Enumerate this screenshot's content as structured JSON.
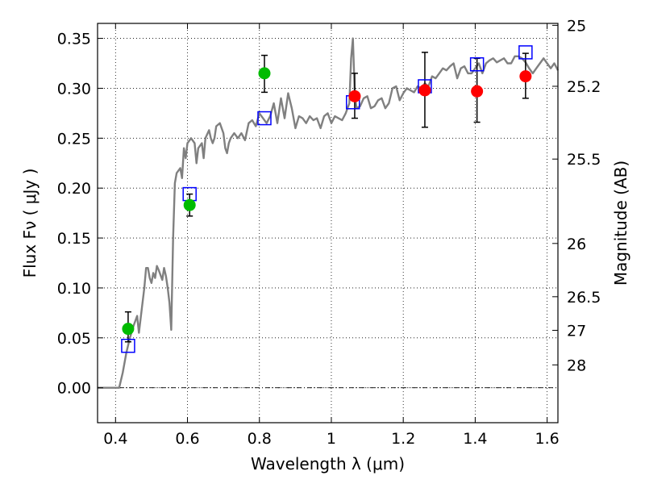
{
  "chart_data": {
    "type": "scatter",
    "xlabel": "Wavelength  λ (μm)",
    "ylabel": "Flux  Fν  ( μJy )",
    "y2label": "Magnitude (AB)",
    "xlim": [
      0.35,
      1.63
    ],
    "ylim": [
      -0.035,
      0.365
    ],
    "grid": true,
    "x_ticks": [
      {
        "value": 0.4,
        "label": "0.4"
      },
      {
        "value": 0.6,
        "label": "0.6"
      },
      {
        "value": 0.8,
        "label": "0.8"
      },
      {
        "value": 1.0,
        "label": "1"
      },
      {
        "value": 1.2,
        "label": "1.2"
      },
      {
        "value": 1.4,
        "label": "1.4"
      },
      {
        "value": 1.6,
        "label": "1.6"
      }
    ],
    "y_ticks": [
      {
        "value": 0.0,
        "label": "0.00"
      },
      {
        "value": 0.05,
        "label": "0.05"
      },
      {
        "value": 0.1,
        "label": "0.10"
      },
      {
        "value": 0.15,
        "label": "0.15"
      },
      {
        "value": 0.2,
        "label": "0.20"
      },
      {
        "value": 0.25,
        "label": "0.25"
      },
      {
        "value": 0.3,
        "label": "0.30"
      },
      {
        "value": 0.35,
        "label": "0.35"
      }
    ],
    "y2_ticks": [
      {
        "value": 25,
        "label": "25"
      },
      {
        "value": 25.2,
        "label": "25.2"
      },
      {
        "value": 25.5,
        "label": "25.5"
      },
      {
        "value": 26,
        "label": "26"
      },
      {
        "value": 26.5,
        "label": "26.5"
      },
      {
        "value": 27,
        "label": "27"
      },
      {
        "value": 28,
        "label": "28"
      }
    ],
    "model_spectrum": {
      "color": "#808080",
      "points": [
        [
          0.35,
          0.0
        ],
        [
          0.41,
          0.0
        ],
        [
          0.42,
          0.015
        ],
        [
          0.43,
          0.035
        ],
        [
          0.44,
          0.05
        ],
        [
          0.45,
          0.062
        ],
        [
          0.46,
          0.072
        ],
        [
          0.465,
          0.055
        ],
        [
          0.47,
          0.07
        ],
        [
          0.48,
          0.1
        ],
        [
          0.485,
          0.12
        ],
        [
          0.49,
          0.12
        ],
        [
          0.495,
          0.11
        ],
        [
          0.5,
          0.105
        ],
        [
          0.505,
          0.115
        ],
        [
          0.51,
          0.11
        ],
        [
          0.515,
          0.122
        ],
        [
          0.52,
          0.118
        ],
        [
          0.53,
          0.108
        ],
        [
          0.535,
          0.12
        ],
        [
          0.54,
          0.112
        ],
        [
          0.545,
          0.1
        ],
        [
          0.55,
          0.085
        ],
        [
          0.555,
          0.058
        ],
        [
          0.56,
          0.15
        ],
        [
          0.565,
          0.205
        ],
        [
          0.57,
          0.215
        ],
        [
          0.58,
          0.22
        ],
        [
          0.585,
          0.21
        ],
        [
          0.59,
          0.24
        ],
        [
          0.595,
          0.23
        ],
        [
          0.6,
          0.245
        ],
        [
          0.61,
          0.25
        ],
        [
          0.62,
          0.245
        ],
        [
          0.625,
          0.225
        ],
        [
          0.63,
          0.24
        ],
        [
          0.64,
          0.245
        ],
        [
          0.645,
          0.23
        ],
        [
          0.65,
          0.25
        ],
        [
          0.66,
          0.258
        ],
        [
          0.665,
          0.25
        ],
        [
          0.67,
          0.245
        ],
        [
          0.675,
          0.25
        ],
        [
          0.68,
          0.262
        ],
        [
          0.69,
          0.265
        ],
        [
          0.7,
          0.255
        ],
        [
          0.705,
          0.24
        ],
        [
          0.71,
          0.235
        ],
        [
          0.715,
          0.245
        ],
        [
          0.72,
          0.25
        ],
        [
          0.73,
          0.255
        ],
        [
          0.74,
          0.25
        ],
        [
          0.75,
          0.255
        ],
        [
          0.76,
          0.248
        ],
        [
          0.77,
          0.265
        ],
        [
          0.78,
          0.268
        ],
        [
          0.79,
          0.262
        ],
        [
          0.8,
          0.275
        ],
        [
          0.81,
          0.27
        ],
        [
          0.82,
          0.265
        ],
        [
          0.83,
          0.272
        ],
        [
          0.84,
          0.285
        ],
        [
          0.85,
          0.265
        ],
        [
          0.86,
          0.29
        ],
        [
          0.87,
          0.27
        ],
        [
          0.88,
          0.295
        ],
        [
          0.89,
          0.28
        ],
        [
          0.9,
          0.26
        ],
        [
          0.91,
          0.272
        ],
        [
          0.92,
          0.27
        ],
        [
          0.93,
          0.265
        ],
        [
          0.94,
          0.272
        ],
        [
          0.95,
          0.268
        ],
        [
          0.96,
          0.27
        ],
        [
          0.97,
          0.26
        ],
        [
          0.98,
          0.272
        ],
        [
          0.99,
          0.275
        ],
        [
          1.0,
          0.265
        ],
        [
          1.01,
          0.272
        ],
        [
          1.02,
          0.27
        ],
        [
          1.03,
          0.268
        ],
        [
          1.04,
          0.275
        ],
        [
          1.05,
          0.285
        ],
        [
          1.055,
          0.33
        ],
        [
          1.06,
          0.35
        ],
        [
          1.065,
          0.295
        ],
        [
          1.07,
          0.28
        ],
        [
          1.08,
          0.282
        ],
        [
          1.09,
          0.29
        ],
        [
          1.1,
          0.292
        ],
        [
          1.11,
          0.28
        ],
        [
          1.12,
          0.282
        ],
        [
          1.13,
          0.288
        ],
        [
          1.14,
          0.29
        ],
        [
          1.15,
          0.28
        ],
        [
          1.16,
          0.285
        ],
        [
          1.17,
          0.3
        ],
        [
          1.18,
          0.302
        ],
        [
          1.19,
          0.288
        ],
        [
          1.2,
          0.295
        ],
        [
          1.21,
          0.3
        ],
        [
          1.22,
          0.298
        ],
        [
          1.23,
          0.296
        ],
        [
          1.24,
          0.302
        ],
        [
          1.25,
          0.3
        ],
        [
          1.26,
          0.305
        ],
        [
          1.27,
          0.302
        ],
        [
          1.28,
          0.312
        ],
        [
          1.29,
          0.31
        ],
        [
          1.3,
          0.315
        ],
        [
          1.31,
          0.32
        ],
        [
          1.32,
          0.318
        ],
        [
          1.33,
          0.322
        ],
        [
          1.34,
          0.325
        ],
        [
          1.35,
          0.31
        ],
        [
          1.36,
          0.32
        ],
        [
          1.37,
          0.322
        ],
        [
          1.38,
          0.315
        ],
        [
          1.39,
          0.315
        ],
        [
          1.4,
          0.32
        ],
        [
          1.41,
          0.325
        ],
        [
          1.42,
          0.315
        ],
        [
          1.43,
          0.325
        ],
        [
          1.44,
          0.328
        ],
        [
          1.45,
          0.33
        ],
        [
          1.46,
          0.326
        ],
        [
          1.47,
          0.328
        ],
        [
          1.48,
          0.33
        ],
        [
          1.49,
          0.325
        ],
        [
          1.5,
          0.325
        ],
        [
          1.51,
          0.332
        ],
        [
          1.52,
          0.332
        ],
        [
          1.53,
          0.33
        ],
        [
          1.54,
          0.326
        ],
        [
          1.55,
          0.32
        ],
        [
          1.56,
          0.315
        ],
        [
          1.57,
          0.32
        ],
        [
          1.58,
          0.325
        ],
        [
          1.59,
          0.33
        ],
        [
          1.6,
          0.325
        ],
        [
          1.61,
          0.32
        ],
        [
          1.62,
          0.325
        ],
        [
          1.63,
          0.318
        ]
      ]
    },
    "model_photometry": {
      "color": "#0000ff",
      "marker": "open-square",
      "points": [
        {
          "x": 0.435,
          "y": 0.042
        },
        {
          "x": 0.606,
          "y": 0.194
        },
        {
          "x": 0.814,
          "y": 0.27
        },
        {
          "x": 1.06,
          "y": 0.286
        },
        {
          "x": 1.26,
          "y": 0.302
        },
        {
          "x": 1.405,
          "y": 0.324
        },
        {
          "x": 1.54,
          "y": 0.336
        }
      ]
    },
    "observed_green": {
      "color": "#00bb00",
      "marker": "filled-circle",
      "points": [
        {
          "x": 0.435,
          "y": 0.059,
          "err_low": 0.046,
          "err_high": 0.076
        },
        {
          "x": 0.606,
          "y": 0.183,
          "err_low": 0.172,
          "err_high": 0.194
        },
        {
          "x": 0.814,
          "y": 0.315,
          "err_low": 0.296,
          "err_high": 0.333
        }
      ]
    },
    "observed_red": {
      "color": "#ff0000",
      "marker": "filled-circle",
      "points": [
        {
          "x": 1.065,
          "y": 0.292,
          "err_low": 0.27,
          "err_high": 0.315
        },
        {
          "x": 1.26,
          "y": 0.298,
          "err_low": 0.261,
          "err_high": 0.336
        },
        {
          "x": 1.405,
          "y": 0.297,
          "err_low": 0.266,
          "err_high": 0.33
        },
        {
          "x": 1.54,
          "y": 0.312,
          "err_low": 0.29,
          "err_high": 0.335
        }
      ]
    }
  }
}
